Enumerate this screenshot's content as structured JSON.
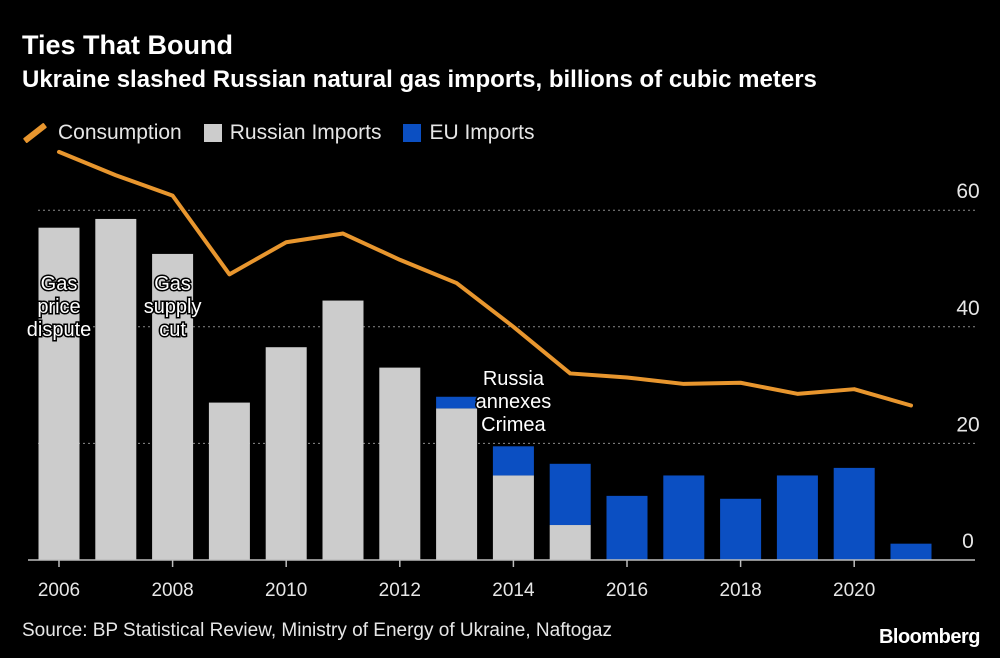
{
  "header": {
    "title": "Ties That Bound",
    "subtitle": "Ukraine slashed Russian natural gas imports, billions of cubic meters"
  },
  "legend": {
    "items": [
      {
        "label": "Consumption",
        "kind": "line",
        "color": "#e8962e"
      },
      {
        "label": "Russian Imports",
        "kind": "box",
        "color": "#cccccc"
      },
      {
        "label": "EU Imports",
        "kind": "box",
        "color": "#0b4fc2"
      }
    ]
  },
  "footer": {
    "source": "Source: BP Statistical Review, Ministry of Energy of Ukraine, Naftogaz",
    "brand": "Bloomberg"
  },
  "chart_data": {
    "type": "bar",
    "x": [
      2006,
      2007,
      2008,
      2009,
      2010,
      2011,
      2012,
      2013,
      2014,
      2015,
      2016,
      2017,
      2018,
      2019,
      2020,
      2021
    ],
    "xticks": [
      "2006",
      "2008",
      "2010",
      "2012",
      "2014",
      "2016",
      "2018",
      "2020"
    ],
    "yticks": [
      "0",
      "20",
      "40",
      "60"
    ],
    "ylim": [
      0,
      70
    ],
    "y_axis_side": "right",
    "grid": true,
    "series": [
      {
        "name": "Russian Imports",
        "kind": "stacked-bar",
        "color": "#cccccc",
        "values": [
          57.0,
          58.5,
          52.5,
          27.0,
          36.5,
          44.5,
          33.0,
          26.0,
          14.5,
          6.0,
          0,
          0,
          0,
          0,
          0,
          0
        ]
      },
      {
        "name": "EU Imports",
        "kind": "stacked-bar",
        "color": "#0b4fc2",
        "values": [
          0,
          0,
          0,
          0,
          0,
          0,
          0,
          2.0,
          5.0,
          10.5,
          11.0,
          14.5,
          10.5,
          14.5,
          15.8,
          2.8
        ]
      },
      {
        "name": "Consumption",
        "kind": "line",
        "color": "#e8962e",
        "values": [
          70.0,
          66.0,
          62.5,
          49.0,
          54.5,
          56.0,
          51.5,
          47.5,
          40.0,
          32.0,
          31.3,
          30.2,
          30.4,
          28.5,
          29.3,
          26.5
        ]
      }
    ],
    "annotations": [
      {
        "lines": [
          "Gas",
          "price",
          "dispute"
        ],
        "x": 2006
      },
      {
        "lines": [
          "Gas",
          "supply",
          "cut"
        ],
        "x": 2008
      },
      {
        "lines": [
          "Russia",
          "annexes",
          "Crimea"
        ],
        "x": 2014
      }
    ]
  }
}
